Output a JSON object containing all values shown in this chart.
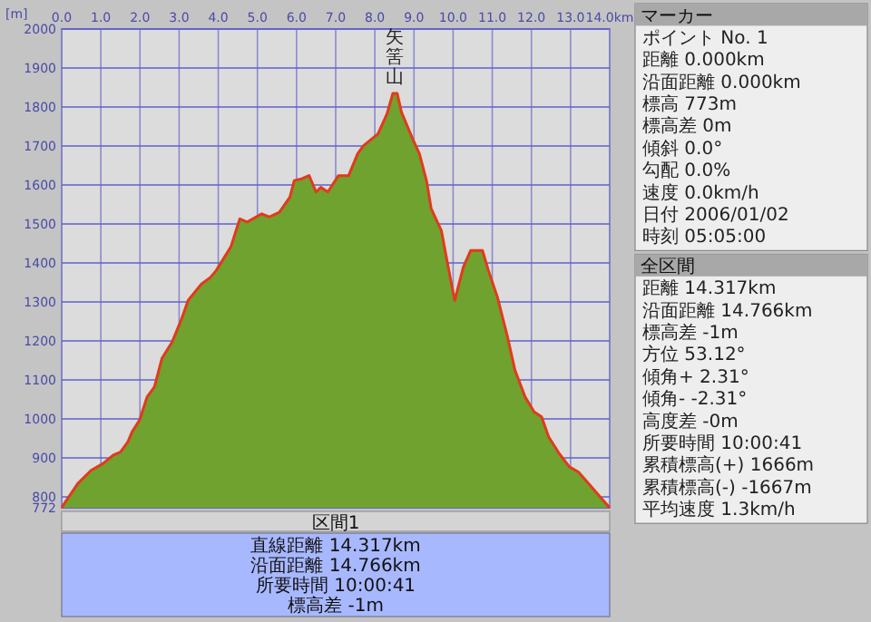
{
  "chart_data": [
    {
      "type": "area",
      "ylabel": "[m]",
      "grid": true,
      "xlim": [
        0,
        14
      ],
      "ylim": [
        772,
        2000
      ],
      "xticks": [
        {
          "value": 0,
          "label": "0.0"
        },
        {
          "value": 1,
          "label": "1.0"
        },
        {
          "value": 2,
          "label": "2.0"
        },
        {
          "value": 3,
          "label": "3.0"
        },
        {
          "value": 4,
          "label": "4.0"
        },
        {
          "value": 5,
          "label": "5.0"
        },
        {
          "value": 6,
          "label": "6.0"
        },
        {
          "value": 7,
          "label": "7.0"
        },
        {
          "value": 8,
          "label": "8.0"
        },
        {
          "value": 9,
          "label": "9.0"
        },
        {
          "value": 10,
          "label": "10.0"
        },
        {
          "value": 11,
          "label": "11.0"
        },
        {
          "value": 12,
          "label": "12.0"
        },
        {
          "value": 13,
          "label": "13.0"
        },
        {
          "value": 14,
          "label": "14.0km"
        }
      ],
      "yticks": [
        772,
        800,
        900,
        1000,
        1100,
        1200,
        1300,
        1400,
        1500,
        1600,
        1700,
        1800,
        1900,
        2000
      ],
      "x": [
        0,
        0.41,
        0.75,
        1.05,
        1.32,
        1.5,
        1.69,
        1.8,
        1.99,
        2.18,
        2.37,
        2.56,
        2.82,
        3.05,
        3.23,
        3.57,
        3.8,
        3.95,
        4.32,
        4.55,
        4.74,
        5.11,
        5.3,
        5.56,
        5.83,
        5.94,
        6.13,
        6.32,
        6.5,
        6.62,
        6.8,
        7.07,
        7.33,
        7.56,
        7.71,
        8.08,
        8.31,
        8.46,
        8.57,
        8.68,
        8.95,
        9.14,
        9.32,
        9.44,
        9.7,
        9.89,
        10.04,
        10.26,
        10.45,
        10.75,
        10.9,
        11.13,
        11.39,
        11.58,
        11.84,
        12.07,
        12.26,
        12.44,
        12.71,
        12.97,
        13.2,
        13.46,
        13.72,
        14
      ],
      "series": [
        {
          "color": "#6fa22e",
          "values": [
            773,
            834,
            868,
            885,
            907,
            915,
            941,
            967,
            997,
            1056,
            1082,
            1155,
            1197,
            1253,
            1304,
            1346,
            1363,
            1381,
            1441,
            1513,
            1505,
            1526,
            1518,
            1530,
            1569,
            1611,
            1616,
            1624,
            1582,
            1594,
            1582,
            1624,
            1624,
            1680,
            1701,
            1731,
            1782,
            1835,
            1835,
            1787,
            1722,
            1680,
            1611,
            1539,
            1483,
            1381,
            1304,
            1389,
            1432,
            1432,
            1381,
            1313,
            1210,
            1125,
            1056,
            1018,
            1005,
            954,
            911,
            877,
            864,
            834,
            804,
            772
          ]
        }
      ],
      "annotations": [
        {
          "text": "矢筈山",
          "x": 8.5,
          "y": 1835
        }
      ]
    },
    {
      "type": "other",
      "title": "マーカー",
      "annotations": [
        "ポイント No. 1",
        "距離 0.000km",
        "沿面距離 0.000km",
        "標高 773m",
        "標高差 0m",
        "傾斜 0.0°",
        "勾配 0.0%",
        "速度 0.0km/h",
        "日付 2006/01/02",
        "時刻 05:05:00"
      ]
    },
    {
      "type": "other",
      "title": "全区間",
      "annotations": [
        "距離 14.317km",
        "沿面距離 14.766km",
        "標高差 -1m",
        "方位 53.12°",
        "傾角+ 2.31°",
        "傾角- -2.31°",
        "高度差 -0m",
        "所要時間 10:00:41",
        "累積標高(+) 1666m",
        "累積標高(-) -1667m",
        "平均速度 1.3km/h"
      ]
    },
    {
      "type": "other",
      "title": "区間1",
      "annotations": [
        "直線距離 14.317km",
        "沿面距離 14.766km",
        "所要時間 10:00:41",
        "標高差 -1m"
      ]
    }
  ]
}
